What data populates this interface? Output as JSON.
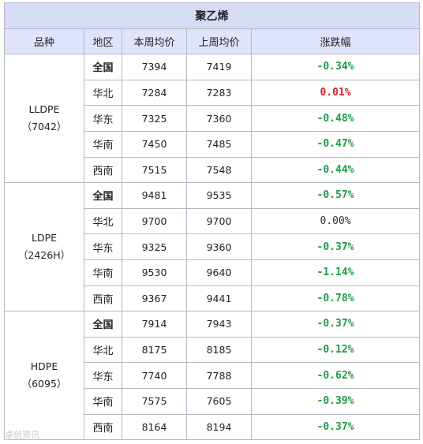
{
  "table": {
    "title": "聚乙烯",
    "headers": [
      "品种",
      "地区",
      "本周均价",
      "上周均价",
      "涨跌幅"
    ],
    "groups": [
      {
        "name": "LLDPE",
        "code": "（7042）",
        "rows": [
          {
            "region": "全国",
            "bold": true,
            "this_week": "7394",
            "last_week": "7419",
            "change": "-0.34%",
            "trend": "down"
          },
          {
            "region": "华北",
            "bold": false,
            "this_week": "7284",
            "last_week": "7283",
            "change": "0.01%",
            "trend": "up"
          },
          {
            "region": "华东",
            "bold": false,
            "this_week": "7325",
            "last_week": "7360",
            "change": "-0.48%",
            "trend": "down"
          },
          {
            "region": "华南",
            "bold": false,
            "this_week": "7450",
            "last_week": "7485",
            "change": "-0.47%",
            "trend": "down"
          },
          {
            "region": "西南",
            "bold": false,
            "this_week": "7515",
            "last_week": "7548",
            "change": "-0.44%",
            "trend": "down"
          }
        ]
      },
      {
        "name": "LDPE",
        "code": "（2426H）",
        "rows": [
          {
            "region": "全国",
            "bold": true,
            "this_week": "9481",
            "last_week": "9535",
            "change": "-0.57%",
            "trend": "down"
          },
          {
            "region": "华北",
            "bold": false,
            "this_week": "9700",
            "last_week": "9700",
            "change": "0.00%",
            "trend": "flat"
          },
          {
            "region": "华东",
            "bold": false,
            "this_week": "9325",
            "last_week": "9360",
            "change": "-0.37%",
            "trend": "down"
          },
          {
            "region": "华南",
            "bold": false,
            "this_week": "9530",
            "last_week": "9640",
            "change": "-1.14%",
            "trend": "down"
          },
          {
            "region": "西南",
            "bold": false,
            "this_week": "9367",
            "last_week": "9441",
            "change": "-0.78%",
            "trend": "down"
          }
        ]
      },
      {
        "name": "HDPE",
        "code": "（6095）",
        "rows": [
          {
            "region": "全国",
            "bold": true,
            "this_week": "7914",
            "last_week": "7943",
            "change": "-0.37%",
            "trend": "down"
          },
          {
            "region": "华北",
            "bold": false,
            "this_week": "8175",
            "last_week": "8185",
            "change": "-0.12%",
            "trend": "down"
          },
          {
            "region": "华东",
            "bold": false,
            "this_week": "7740",
            "last_week": "7788",
            "change": "-0.62%",
            "trend": "down"
          },
          {
            "region": "华南",
            "bold": false,
            "this_week": "7575",
            "last_week": "7605",
            "change": "-0.39%",
            "trend": "down"
          },
          {
            "region": "西南",
            "bold": false,
            "this_week": "8164",
            "last_week": "8194",
            "change": "-0.37%",
            "trend": "down"
          }
        ]
      }
    ]
  },
  "colors": {
    "down": "#1f9a4a",
    "up": "#e01f1f",
    "header_bg": "#dfe4fb",
    "title_bg": "#d6dcf5"
  },
  "watermark": "卓创资讯"
}
